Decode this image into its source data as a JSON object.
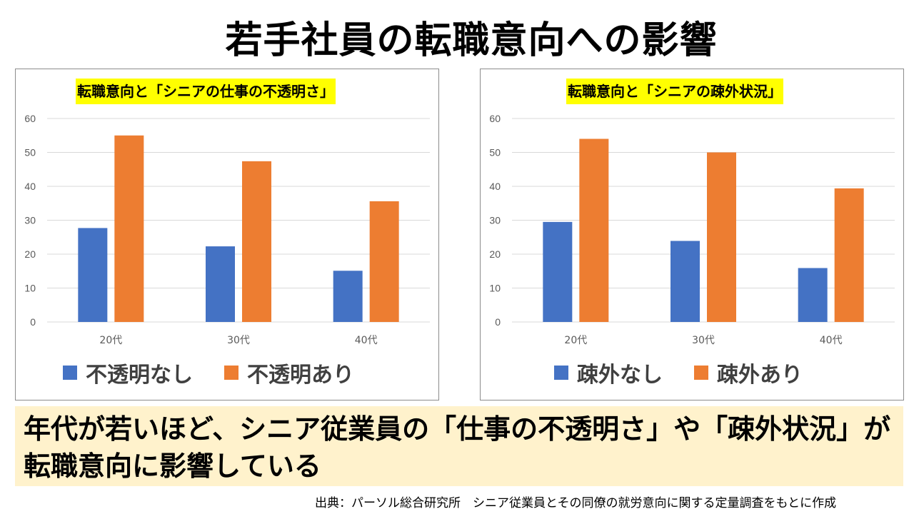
{
  "page": {
    "title": "若手社員の転職意向への影響",
    "conclusion": "年代が若いほど、シニア従業員の「仕事の不透明さ」や「疎外状況」が転職意向に影響している",
    "source": "出典：パーソル総合研究所　シニア従業員とその同僚の就労意向に関する定量調査をもとに作成"
  },
  "colors": {
    "series1": "#4472c4",
    "series2": "#ed7d31",
    "grid": "#d9d9d9",
    "highlight": "#ffff00",
    "conclusion_bg": "#fff2cc"
  },
  "chart_data": [
    {
      "type": "bar",
      "title": "転職意向と「シニアの仕事の不透明さ」",
      "categories": [
        "20代",
        "30代",
        "40代"
      ],
      "ylim": [
        0,
        60
      ],
      "yticks": [
        0,
        10,
        20,
        30,
        40,
        50,
        60
      ],
      "yticks_text": [
        "0",
        "10",
        "20",
        "30",
        "40",
        "50",
        "60"
      ],
      "grid": true,
      "legend_position": "bottom",
      "series": [
        {
          "name": "不透明なし",
          "values": [
            27.7,
            22.3,
            15.1
          ]
        },
        {
          "name": "不透明あり",
          "values": [
            55.0,
            47.4,
            35.6
          ]
        }
      ]
    },
    {
      "type": "bar",
      "title": "転職意向と「シニアの疎外状況」",
      "categories": [
        "20代",
        "30代",
        "40代"
      ],
      "ylim": [
        0,
        60
      ],
      "yticks": [
        0,
        10,
        20,
        30,
        40,
        50,
        60
      ],
      "yticks_text": [
        "0",
        "10",
        "20",
        "30",
        "40",
        "50",
        "60"
      ],
      "grid": true,
      "legend_position": "bottom",
      "series": [
        {
          "name": "疎外なし",
          "values": [
            29.5,
            23.9,
            15.9
          ]
        },
        {
          "name": "疎外あり",
          "values": [
            54.0,
            50.0,
            39.4
          ]
        }
      ]
    }
  ]
}
